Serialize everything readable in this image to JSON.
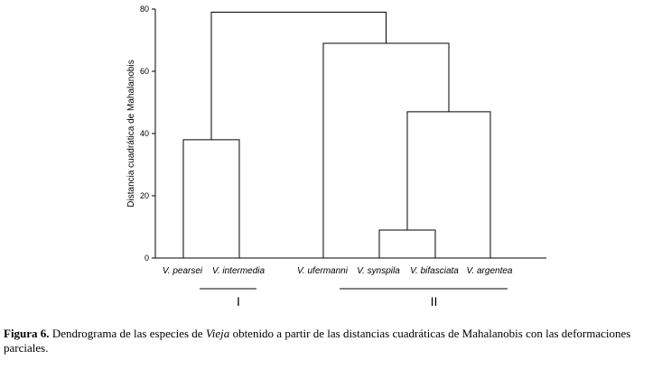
{
  "chart_data": {
    "type": "dendrogram",
    "ylabel": "Distancia cuadrática de Mahalanobis",
    "ylim": [
      0,
      80
    ],
    "yticks": [
      0,
      20,
      40,
      60,
      80
    ],
    "leaves": [
      "V. pearsei",
      "V. intermedia",
      "V. ufermanni",
      "V. synspila",
      "V. bifasciata",
      "V. argentea"
    ],
    "merges": [
      {
        "left": "V. synspila",
        "right": "V. bifasciata",
        "height": 9
      },
      {
        "left": "V. pearsei",
        "right": "V. intermedia",
        "height": 38
      },
      {
        "left": "(V. synspila, V. bifasciata)",
        "right": "V. argentea",
        "height": 47
      },
      {
        "left": "V. ufermanni",
        "right": "(V. synspila, V. bifasciata, V. argentea)",
        "height": 69
      },
      {
        "left": "(V. pearsei, V. intermedia)",
        "right": "(V. ufermanni, V. synspila, V. bifasciata, V. argentea)",
        "height": 79
      }
    ],
    "groups": [
      {
        "label": "I",
        "first_leaf": 0,
        "last_leaf": 1
      },
      {
        "label": "II",
        "first_leaf": 2,
        "last_leaf": 5
      }
    ]
  },
  "caption": {
    "figure_label": "Figura 6.",
    "text_before": " Dendrograma de las especies de ",
    "genus": "Vieja",
    "text_after": " obtenido a partir de las distancias cuadráticas de Mahalanobis con las deformaciones parciales."
  }
}
